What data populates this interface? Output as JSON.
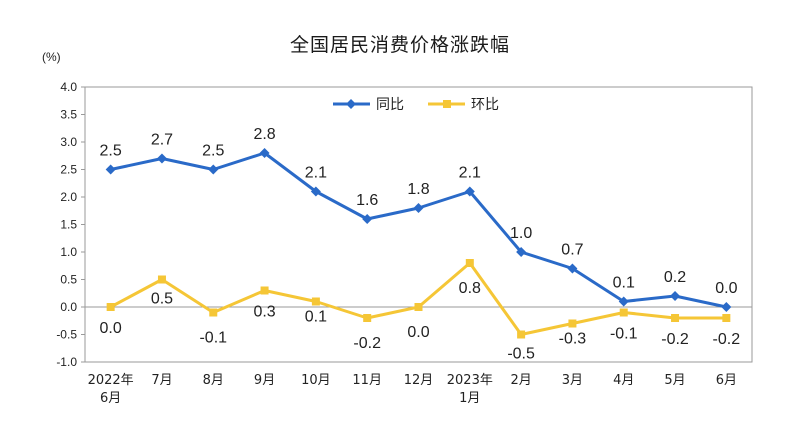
{
  "chart_data": {
    "type": "line",
    "title": "全国居民消费价格涨跌幅",
    "unit_label": "(%)",
    "categories": [
      [
        "2022年",
        "6月"
      ],
      [
        "7月"
      ],
      [
        "8月"
      ],
      [
        "9月"
      ],
      [
        "10月"
      ],
      [
        "11月"
      ],
      [
        "12月"
      ],
      [
        "2023年",
        "1月"
      ],
      [
        "2月"
      ],
      [
        "3月"
      ],
      [
        "4月"
      ],
      [
        "5月"
      ],
      [
        "6月"
      ]
    ],
    "ylim": [
      -1.0,
      4.0
    ],
    "yticks": [
      "4.0",
      "3.5",
      "3.0",
      "2.5",
      "2.0",
      "1.5",
      "1.0",
      "0.5",
      "0.0",
      "-0.5",
      "-1.0"
    ],
    "legend_position": "top-center",
    "grid": false,
    "series": [
      {
        "name": "同比",
        "color": "#2a6ac8",
        "marker": "diamond",
        "values": [
          2.5,
          2.7,
          2.5,
          2.8,
          2.1,
          1.6,
          1.8,
          2.1,
          1.0,
          0.7,
          0.1,
          0.2,
          0.0
        ],
        "labels": [
          "2.5",
          "2.7",
          "2.5",
          "2.8",
          "2.1",
          "1.6",
          "1.8",
          "2.1",
          "1.0",
          "0.7",
          "0.1",
          "0.2",
          "0.0"
        ]
      },
      {
        "name": "环比",
        "color": "#f5c636",
        "marker": "square",
        "values": [
          0.0,
          0.5,
          -0.1,
          0.3,
          0.1,
          -0.2,
          0.0,
          0.8,
          -0.5,
          -0.3,
          -0.1,
          -0.2,
          -0.2
        ],
        "labels": [
          "0.0",
          "0.5",
          "-0.1",
          "0.3",
          "0.1",
          "-0.2",
          "0.0",
          "0.8",
          "-0.5",
          "-0.3",
          "-0.1",
          "-0.2",
          "-0.2"
        ]
      }
    ]
  }
}
